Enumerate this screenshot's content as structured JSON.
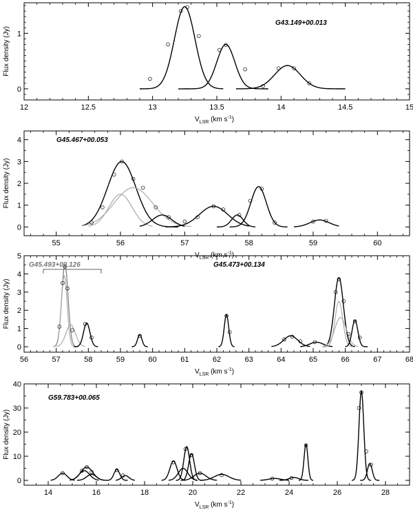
{
  "chart_data": [
    {
      "type": "line",
      "title": "G43.149+00.013",
      "xlabel": "V",
      "xlabel_sub": "LSR",
      "xlabel_units": "(km s",
      "xlabel_exp": "-1",
      "xlabel_close": ")",
      "ylabel": "Flux density (Jy)",
      "xlim": [
        12,
        15
      ],
      "ylim": [
        -0.2,
        1.55
      ],
      "xticks": [
        12,
        12.5,
        13,
        13.5,
        14,
        14.5,
        15
      ],
      "xtick_labels": [
        "12",
        "12.5",
        "13",
        "13.5",
        "14",
        "14.5",
        "15"
      ],
      "xminor": 0.1,
      "yticks": [
        0,
        1
      ],
      "ytick_labels": [
        "0",
        "1"
      ],
      "yminor": 0.1,
      "label_color": "#000000",
      "components": [
        {
          "amp": 1.48,
          "center": 13.25,
          "width": 0.08,
          "range": [
            12.9,
            13.55
          ],
          "color": "#000000"
        },
        {
          "amp": 0.8,
          "center": 13.57,
          "width": 0.07,
          "range": [
            13.2,
            13.9
          ],
          "color": "#000000"
        },
        {
          "amp": 0.42,
          "center": 14.05,
          "width": 0.1,
          "range": [
            13.65,
            14.5
          ],
          "color": "#000000"
        }
      ],
      "observed": [
        [
          12.98,
          0.18
        ],
        [
          13.12,
          0.8
        ],
        [
          13.22,
          1.4
        ],
        [
          13.27,
          1.47
        ],
        [
          13.36,
          0.95
        ],
        [
          13.52,
          0.7
        ],
        [
          13.57,
          0.79
        ],
        [
          13.72,
          0.35
        ],
        [
          13.86,
          0.05
        ],
        [
          13.98,
          0.37
        ],
        [
          14.1,
          0.37
        ],
        [
          14.22,
          0.1
        ]
      ]
    },
    {
      "type": "line",
      "title": "G45.467+00.053",
      "xlabel": "V",
      "xlabel_sub": "LSR",
      "xlabel_units": "(km s",
      "xlabel_exp": "-1",
      "xlabel_close": ")",
      "ylabel": "Flux density (Jy)",
      "xlim": [
        54.5,
        60.5
      ],
      "ylim": [
        -0.4,
        4.4
      ],
      "xticks": [
        55,
        56,
        57,
        58,
        59,
        60
      ],
      "xtick_labels": [
        "55",
        "56",
        "57",
        "58",
        "59",
        "60"
      ],
      "xminor": 0.2,
      "yticks": [
        0,
        1,
        2,
        3,
        4
      ],
      "ytick_labels": [
        "0",
        "1",
        "2",
        "3",
        "4"
      ],
      "yminor": 0.5,
      "label_color": "#000000",
      "components": [
        {
          "amp": 3.0,
          "center": 56.02,
          "width": 0.22,
          "range": [
            55.4,
            56.9
          ],
          "color": "#000000"
        },
        {
          "amp": 1.5,
          "center": 56.0,
          "width": 0.18,
          "range": [
            55.5,
            56.5
          ],
          "color": "#aaaaaa"
        },
        {
          "amp": 1.8,
          "center": 56.2,
          "width": 0.3,
          "range": [
            55.4,
            57.1
          ],
          "color": "#aaaaaa"
        },
        {
          "amp": 0.55,
          "center": 56.65,
          "width": 0.15,
          "range": [
            56.3,
            57.0
          ],
          "color": "#000000"
        },
        {
          "amp": 0.95,
          "center": 57.45,
          "width": 0.22,
          "range": [
            56.7,
            58.0
          ],
          "color": "#000000"
        },
        {
          "amp": 0.55,
          "center": 57.82,
          "width": 0.09,
          "range": [
            57.5,
            58.1
          ],
          "color": "#000000"
        },
        {
          "amp": 1.85,
          "center": 58.15,
          "width": 0.12,
          "range": [
            57.7,
            58.6
          ],
          "color": "#000000"
        },
        {
          "amp": 0.32,
          "center": 59.1,
          "width": 0.15,
          "range": [
            58.7,
            59.4
          ],
          "color": "#000000"
        }
      ],
      "observed": [
        [
          55.55,
          0.2
        ],
        [
          55.72,
          0.9
        ],
        [
          55.9,
          2.4
        ],
        [
          56.02,
          3.0
        ],
        [
          56.2,
          2.2
        ],
        [
          56.35,
          1.8
        ],
        [
          56.55,
          0.9
        ],
        [
          56.75,
          0.45
        ],
        [
          57.0,
          0.25
        ],
        [
          57.2,
          0.45
        ],
        [
          57.45,
          0.95
        ],
        [
          57.6,
          0.8
        ],
        [
          57.85,
          0.55
        ],
        [
          58.02,
          1.2
        ],
        [
          58.2,
          1.75
        ],
        [
          58.4,
          0.2
        ],
        [
          59.0,
          0.25
        ],
        [
          59.2,
          0.28
        ]
      ]
    },
    {
      "type": "line",
      "title": "G45.473+00.134",
      "secondary_title": "G45.493+00.126",
      "xlabel": "V",
      "xlabel_sub": "LSR",
      "xlabel_units": "(km s",
      "xlabel_exp": "-1",
      "xlabel_close": ")",
      "ylabel": "Flux density (Jy)",
      "xlim": [
        56,
        68
      ],
      "ylim": [
        -0.3,
        5.0
      ],
      "xticks": [
        56,
        57,
        58,
        59,
        60,
        61,
        62,
        63,
        64,
        65,
        66,
        67,
        68
      ],
      "xtick_labels": [
        "56",
        "57",
        "58",
        "59",
        "60",
        "61",
        "62",
        "63",
        "64",
        "65",
        "66",
        "67",
        "68"
      ],
      "xminor": 0.2,
      "yticks": [
        0,
        1,
        2,
        3,
        4,
        5
      ],
      "ytick_labels": [
        "0",
        "1",
        "2",
        "3",
        "4",
        "5"
      ],
      "yminor": 0.5,
      "label_color": "#000000",
      "secondary_color": "#777777",
      "bracket": [
        56.6,
        58.4,
        4.25
      ],
      "components": [
        {
          "amp": 4.5,
          "center": 57.27,
          "width": 0.1,
          "range": [
            56.9,
            57.7
          ],
          "color": "#777777"
        },
        {
          "amp": 3.9,
          "center": 57.25,
          "width": 0.09,
          "range": [
            56.9,
            57.6
          ],
          "color": "#aaaaaa"
        },
        {
          "amp": 1.2,
          "center": 57.45,
          "width": 0.15,
          "range": [
            57.0,
            57.9
          ],
          "color": "#aaaaaa"
        },
        {
          "amp": 1.3,
          "center": 57.95,
          "width": 0.1,
          "range": [
            57.55,
            58.3
          ],
          "color": "#000000"
        },
        {
          "amp": 0.65,
          "center": 59.6,
          "width": 0.07,
          "range": [
            59.35,
            59.85
          ],
          "color": "#000000"
        },
        {
          "amp": 1.75,
          "center": 62.3,
          "width": 0.07,
          "range": [
            62.05,
            62.55
          ],
          "color": "#000000"
        },
        {
          "amp": 0.6,
          "center": 64.3,
          "width": 0.22,
          "range": [
            63.7,
            64.9
          ],
          "color": "#000000"
        },
        {
          "amp": 0.25,
          "center": 65.1,
          "width": 0.2,
          "range": [
            64.6,
            65.6
          ],
          "color": "#000000"
        },
        {
          "amp": 3.8,
          "center": 65.8,
          "width": 0.14,
          "range": [
            65.3,
            66.3
          ],
          "color": "#000000"
        },
        {
          "amp": 2.5,
          "center": 65.8,
          "width": 0.12,
          "range": [
            65.35,
            66.25
          ],
          "color": "#aaaaaa"
        },
        {
          "amp": 1.6,
          "center": 65.85,
          "width": 0.18,
          "range": [
            65.3,
            66.4
          ],
          "color": "#aaaaaa"
        },
        {
          "amp": 1.45,
          "center": 66.3,
          "width": 0.09,
          "range": [
            66.0,
            66.7
          ],
          "color": "#000000"
        }
      ],
      "observed": [
        [
          57.1,
          1.1
        ],
        [
          57.2,
          3.5
        ],
        [
          57.27,
          4.4
        ],
        [
          57.35,
          3.2
        ],
        [
          57.5,
          0.9
        ],
        [
          57.9,
          1.25
        ],
        [
          58.1,
          0.5
        ],
        [
          59.6,
          0.6
        ],
        [
          62.3,
          1.7
        ],
        [
          62.4,
          0.8
        ],
        [
          64.1,
          0.4
        ],
        [
          64.35,
          0.55
        ],
        [
          64.6,
          0.3
        ],
        [
          65.05,
          0.25
        ],
        [
          65.7,
          3.0
        ],
        [
          65.8,
          3.7
        ],
        [
          65.95,
          2.5
        ],
        [
          66.1,
          0.7
        ],
        [
          66.3,
          1.4
        ],
        [
          66.45,
          0.5
        ]
      ]
    },
    {
      "type": "line",
      "title": "G59.783+00.065",
      "xlabel": "V",
      "xlabel_sub": "LSR",
      "xlabel_units": "(km s",
      "xlabel_exp": "-1",
      "xlabel_close": ")",
      "ylabel": "Flux density (Jy)",
      "xlim": [
        13,
        29
      ],
      "ylim": [
        -2,
        40
      ],
      "xticks": [
        14,
        16,
        18,
        20,
        22,
        24,
        26,
        28
      ],
      "xtick_labels": [
        "14",
        "16",
        "18",
        "20",
        "22",
        "24",
        "26",
        "28"
      ],
      "xminor": 0.5,
      "yticks": [
        0,
        10,
        20,
        30,
        40
      ],
      "ytick_labels": [
        "0",
        "10",
        "20",
        "30",
        "40"
      ],
      "yminor": 5,
      "label_color": "#000000",
      "components": [
        {
          "amp": 3.0,
          "center": 14.6,
          "width": 0.18,
          "range": [
            14.1,
            15.1
          ],
          "color": "#000000"
        },
        {
          "amp": 5.5,
          "center": 15.6,
          "width": 0.25,
          "range": [
            14.9,
            16.3
          ],
          "color": "#000000"
        },
        {
          "amp": 4.0,
          "center": 15.5,
          "width": 0.22,
          "range": [
            14.9,
            16.1
          ],
          "color": "#000000"
        },
        {
          "amp": 2.5,
          "center": 15.8,
          "width": 0.2,
          "range": [
            15.2,
            16.4
          ],
          "color": "#000000"
        },
        {
          "amp": 4.5,
          "center": 16.85,
          "width": 0.12,
          "range": [
            16.4,
            17.3
          ],
          "color": "#000000"
        },
        {
          "amp": 2.0,
          "center": 17.2,
          "width": 0.15,
          "range": [
            16.8,
            17.6
          ],
          "color": "#000000"
        },
        {
          "amp": 8.0,
          "center": 19.2,
          "width": 0.15,
          "range": [
            18.7,
            19.7
          ],
          "color": "#000000"
        },
        {
          "amp": 5.0,
          "center": 19.6,
          "width": 0.2,
          "range": [
            19.0,
            20.2
          ],
          "color": "#000000"
        },
        {
          "amp": 14.0,
          "center": 19.75,
          "width": 0.12,
          "range": [
            19.3,
            20.2
          ],
          "color": "#000000"
        },
        {
          "amp": 11.0,
          "center": 19.95,
          "width": 0.12,
          "range": [
            19.5,
            20.4
          ],
          "color": "#000000"
        },
        {
          "amp": 3.0,
          "center": 20.3,
          "width": 0.25,
          "range": [
            19.6,
            21.0
          ],
          "color": "#000000"
        },
        {
          "amp": 2.5,
          "center": 21.2,
          "width": 0.3,
          "range": [
            20.3,
            22.0
          ],
          "color": "#000000"
        },
        {
          "amp": 0.8,
          "center": 23.4,
          "width": 0.25,
          "range": [
            22.8,
            24.0
          ],
          "color": "#000000"
        },
        {
          "amp": 1.2,
          "center": 24.2,
          "width": 0.2,
          "range": [
            23.6,
            24.8
          ],
          "color": "#000000"
        },
        {
          "amp": 15.0,
          "center": 24.7,
          "width": 0.08,
          "range": [
            24.4,
            25.0
          ],
          "color": "#000000"
        },
        {
          "amp": 37.0,
          "center": 27.0,
          "width": 0.1,
          "range": [
            26.6,
            27.4
          ],
          "color": "#000000"
        },
        {
          "amp": 7.0,
          "center": 27.35,
          "width": 0.1,
          "range": [
            26.95,
            27.75
          ],
          "color": "#000000"
        }
      ],
      "observed": [
        [
          14.6,
          3.0
        ],
        [
          15.4,
          4.0
        ],
        [
          15.6,
          5.5
        ],
        [
          15.8,
          3.5
        ],
        [
          16.85,
          4.2
        ],
        [
          17.1,
          2.0
        ],
        [
          19.2,
          7.5
        ],
        [
          19.7,
          13.0
        ],
        [
          19.95,
          10.5
        ],
        [
          20.3,
          3.0
        ],
        [
          21.2,
          2.2
        ],
        [
          23.3,
          0.7
        ],
        [
          24.1,
          1.0
        ],
        [
          24.7,
          14.5
        ],
        [
          26.9,
          30.0
        ],
        [
          27.0,
          36.5
        ],
        [
          27.2,
          12.0
        ],
        [
          27.4,
          6.5
        ]
      ]
    }
  ]
}
